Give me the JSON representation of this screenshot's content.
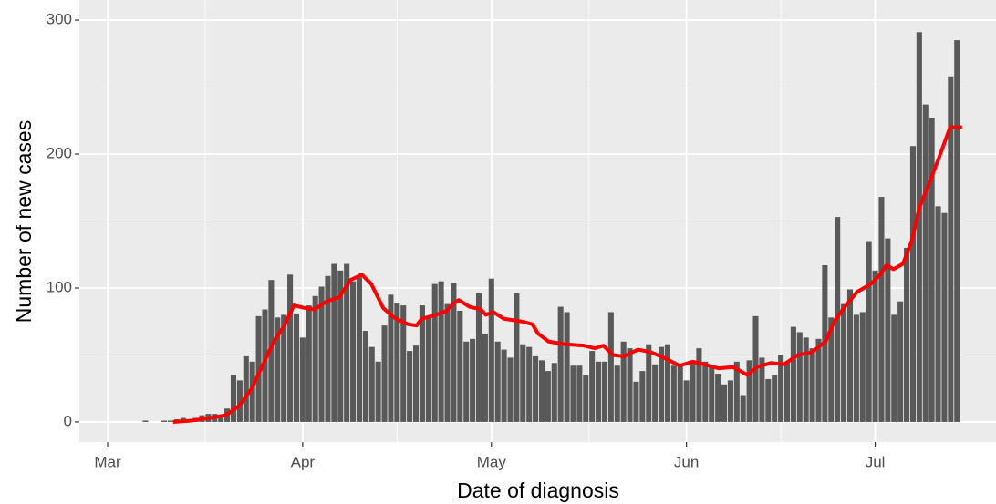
{
  "chart_data": {
    "type": "bar",
    "xlabel": "Date of diagnosis",
    "ylabel": "Number of new cases",
    "xlim": [
      -4.5,
      141.2
    ],
    "ylim": [
      -15,
      315
    ],
    "xticks": [
      {
        "value": 0,
        "label": "Mar"
      },
      {
        "value": 31,
        "label": "Apr"
      },
      {
        "value": 61,
        "label": "May"
      },
      {
        "value": 92,
        "label": "Jun"
      },
      {
        "value": 122,
        "label": "Jul"
      }
    ],
    "xminor": [
      15.5,
      46,
      76.5,
      107
    ],
    "yticks": [
      0,
      100,
      200,
      300
    ],
    "yminor": [
      50,
      150,
      250
    ],
    "grid": true,
    "bars": {
      "color": "#595959",
      "x": [
        6,
        9,
        10,
        11,
        12,
        13,
        14,
        15,
        16,
        17,
        18,
        19,
        20,
        21,
        22,
        23,
        24,
        25,
        26,
        27,
        28,
        29,
        30,
        31,
        32,
        33,
        34,
        35,
        36,
        37,
        38,
        39,
        40,
        41,
        42,
        43,
        44,
        45,
        46,
        47,
        48,
        49,
        50,
        51,
        52,
        53,
        54,
        55,
        56,
        57,
        58,
        59,
        60,
        61,
        62,
        63,
        64,
        65,
        66,
        67,
        68,
        69,
        70,
        71,
        72,
        73,
        74,
        75,
        76,
        77,
        78,
        79,
        80,
        81,
        82,
        83,
        84,
        85,
        86,
        87,
        88,
        89,
        90,
        91,
        92,
        93,
        94,
        95,
        96,
        97,
        98,
        99,
        100,
        101,
        102,
        103,
        104,
        105,
        106,
        107,
        108,
        109,
        110,
        111,
        112,
        113,
        114,
        115,
        116,
        117,
        118,
        119,
        120,
        121,
        122,
        123,
        124,
        125,
        126,
        127,
        128,
        129,
        130,
        131,
        132,
        133,
        134,
        135
      ],
      "values": [
        1,
        1,
        1,
        2,
        3,
        2,
        3,
        5,
        6,
        6,
        5,
        10,
        35,
        31,
        49,
        45,
        79,
        84,
        106,
        78,
        80,
        110,
        81,
        63,
        87,
        94,
        101,
        109,
        118,
        113,
        118,
        105,
        108,
        68,
        56,
        45,
        72,
        95,
        89,
        87,
        53,
        57,
        87,
        79,
        103,
        105,
        88,
        104,
        83,
        60,
        62,
        96,
        66,
        107,
        60,
        54,
        48,
        96,
        58,
        56,
        49,
        46,
        38,
        44,
        86,
        82,
        42,
        42,
        35,
        53,
        45,
        45,
        82,
        42,
        60,
        55,
        30,
        38,
        58,
        43,
        56,
        58,
        42,
        42,
        31,
        44,
        55,
        45,
        42,
        36,
        28,
        31,
        45,
        20,
        46,
        79,
        48,
        32,
        35,
        50,
        45,
        71,
        67,
        63,
        55,
        62,
        117,
        78,
        153,
        88,
        99,
        80,
        82,
        135,
        113,
        168,
        137,
        80,
        90,
        130,
        206,
        291,
        237,
        227,
        161,
        156,
        258,
        285
      ]
    },
    "line": {
      "color": "#ff0000",
      "x": [
        10.4,
        13.3,
        16.2,
        18.8,
        20.9,
        22.9,
        24.9,
        26.4,
        28.1,
        29.6,
        31.4,
        32.9,
        34.8,
        36.8,
        38.6,
        40.4,
        41.9,
        43.8,
        45.5,
        47.7,
        49.1,
        49.9,
        52.2,
        53.9,
        54.9,
        55.8,
        57.5,
        59.3,
        60.1,
        61.3,
        63,
        65.8,
        67.5,
        68.4,
        70.1,
        72.8,
        75.7,
        77.4,
        78.8,
        80.3,
        82,
        84.3,
        86.4,
        88.4,
        90.9,
        93,
        94.8,
        97.1,
        99.4,
        101.7,
        103.2,
        105.4,
        107.5,
        109.7,
        111.9,
        114.1,
        115.5,
        117,
        119.1,
        121.3,
        122.8,
        123.8,
        124.9,
        126.4,
        127.8,
        129,
        130.4,
        132.2,
        133.9,
        135.8
      ],
      "values": [
        0,
        1,
        3,
        5,
        12,
        25,
        45,
        60,
        72,
        87,
        85,
        84,
        90,
        93,
        106,
        110,
        103,
        85,
        78,
        73,
        72,
        77,
        80,
        83,
        88,
        91,
        86,
        84,
        80,
        82,
        77,
        75,
        73,
        66,
        60,
        58,
        57,
        55,
        57,
        50,
        49,
        54,
        52,
        48,
        42,
        45,
        43,
        40,
        41,
        35,
        41,
        44,
        43,
        50,
        52,
        60,
        75,
        85,
        97,
        103,
        110,
        117,
        114,
        118,
        135,
        160,
        176,
        198,
        220,
        220
      ]
    }
  }
}
